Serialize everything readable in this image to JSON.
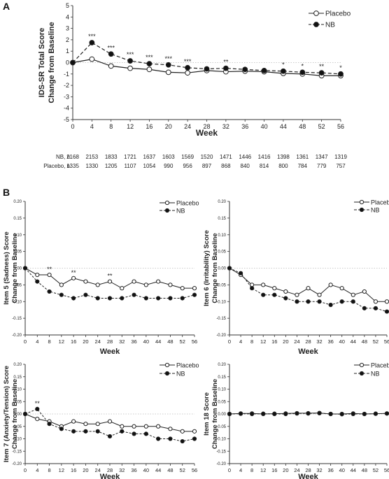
{
  "chart_data": [
    {
      "panel": "A",
      "type": "line",
      "ylabel": [
        "IDS-SR Total Score",
        "Change from Baseline"
      ],
      "xlabel": "Week",
      "x": [
        0,
        4,
        8,
        12,
        16,
        20,
        24,
        28,
        32,
        36,
        40,
        44,
        48,
        52,
        56
      ],
      "xticks": [
        "0",
        "4",
        "8",
        "12",
        "16",
        "20",
        "24",
        "28",
        "32",
        "36",
        "40",
        "44",
        "48",
        "52",
        "56"
      ],
      "ylim": [
        -5,
        5
      ],
      "yticks": [
        "-5",
        "-4",
        "-3",
        "-2",
        "-1",
        "0",
        "1",
        "2",
        "3",
        "4",
        "5"
      ],
      "series": [
        {
          "name": "Placebo",
          "marker": "open",
          "dash": "solid",
          "values": [
            0,
            0.3,
            -0.3,
            -0.5,
            -0.6,
            -0.85,
            -0.9,
            -0.7,
            -0.8,
            -0.75,
            -0.8,
            -0.95,
            -1.0,
            -1.15,
            -1.15
          ]
        },
        {
          "name": "NB",
          "marker": "filled",
          "dash": "dashed",
          "values": [
            0,
            1.75,
            0.75,
            0.15,
            -0.1,
            -0.2,
            -0.45,
            -0.55,
            -0.5,
            -0.6,
            -0.7,
            -0.75,
            -0.85,
            -0.9,
            -1.0
          ]
        }
      ],
      "annotations": [
        {
          "x": 4,
          "text": "***"
        },
        {
          "x": 8,
          "text": "***"
        },
        {
          "x": 12,
          "text": "***"
        },
        {
          "x": 16,
          "text": "***"
        },
        {
          "x": 20,
          "text": "***"
        },
        {
          "x": 24,
          "text": "***"
        },
        {
          "x": 32,
          "text": "**"
        },
        {
          "x": 44,
          "text": "*"
        },
        {
          "x": 48,
          "text": "*"
        },
        {
          "x": 52,
          "text": "**"
        },
        {
          "x": 56,
          "text": "*"
        }
      ],
      "n_table": [
        {
          "label": "NB, n",
          "values": [
            "2168",
            "2153",
            "1833",
            "1721",
            "1637",
            "1603",
            "1569",
            "1520",
            "1471",
            "1446",
            "1416",
            "1398",
            "1361",
            "1347",
            "1319"
          ]
        },
        {
          "label": "Placebo, n",
          "values": [
            "1335",
            "1330",
            "1205",
            "1107",
            "1054",
            "990",
            "956",
            "897",
            "868",
            "840",
            "814",
            "800",
            "784",
            "779",
            "757"
          ]
        }
      ]
    },
    {
      "panel": "B",
      "type": "line",
      "ylabel": [
        "Item 5 (Sadness) Score",
        "Change from Baseline"
      ],
      "xlabel": "Week",
      "x": [
        0,
        4,
        8,
        12,
        16,
        20,
        24,
        28,
        32,
        36,
        40,
        44,
        48,
        52,
        56
      ],
      "xticks": [
        "0",
        "4",
        "8",
        "12",
        "16",
        "20",
        "24",
        "28",
        "32",
        "36",
        "40",
        "44",
        "48",
        "52",
        "56"
      ],
      "ylim": [
        -0.2,
        0.2
      ],
      "yticks": [
        "-0.20",
        "-0.15",
        "-0.10",
        "-0.05",
        "0.00",
        "0.05",
        "0.10",
        "0.15",
        "0.20"
      ],
      "series": [
        {
          "name": "Placebo",
          "marker": "open",
          "dash": "solid",
          "values": [
            0,
            -0.02,
            -0.02,
            -0.05,
            -0.03,
            -0.04,
            -0.05,
            -0.04,
            -0.06,
            -0.04,
            -0.05,
            -0.04,
            -0.05,
            -0.06,
            -0.06
          ]
        },
        {
          "name": "NB",
          "marker": "filled",
          "dash": "dashed",
          "values": [
            0,
            -0.04,
            -0.07,
            -0.08,
            -0.09,
            -0.08,
            -0.09,
            -0.09,
            -0.09,
            -0.08,
            -0.09,
            -0.09,
            -0.09,
            -0.09,
            -0.08
          ]
        }
      ],
      "annotations": [
        {
          "x": 8,
          "text": "**"
        },
        {
          "x": 16,
          "text": "**"
        },
        {
          "x": 28,
          "text": "**"
        }
      ]
    },
    {
      "type": "line",
      "ylabel": [
        "Item 6 (Irritability) Score",
        "Change from Baseline"
      ],
      "xlabel": "Week",
      "x": [
        0,
        4,
        8,
        12,
        16,
        20,
        24,
        28,
        32,
        36,
        40,
        44,
        48,
        52,
        56
      ],
      "xticks": [
        "0",
        "4",
        "8",
        "12",
        "16",
        "20",
        "24",
        "28",
        "32",
        "36",
        "40",
        "44",
        "48",
        "52",
        "56"
      ],
      "ylim": [
        -0.2,
        0.2
      ],
      "yticks": [
        "-0.20",
        "-0.15",
        "-0.10",
        "-0.05",
        "0.00",
        "0.05",
        "0.10",
        "0.15",
        "0.20"
      ],
      "series": [
        {
          "name": "Placebo",
          "marker": "open",
          "dash": "solid",
          "values": [
            0,
            -0.02,
            -0.05,
            -0.05,
            -0.06,
            -0.07,
            -0.08,
            -0.06,
            -0.08,
            -0.05,
            -0.06,
            -0.08,
            -0.07,
            -0.1,
            -0.1
          ]
        },
        {
          "name": "NB",
          "marker": "filled",
          "dash": "dashed",
          "values": [
            0,
            -0.015,
            -0.06,
            -0.08,
            -0.08,
            -0.09,
            -0.1,
            -0.1,
            -0.1,
            -0.11,
            -0.1,
            -0.1,
            -0.12,
            -0.12,
            -0.13
          ]
        }
      ],
      "annotations": []
    },
    {
      "type": "line",
      "ylabel": [
        "Item 7 (Anxiety/Tension) Score",
        "Change from Baseline"
      ],
      "xlabel": "Week",
      "x": [
        0,
        4,
        8,
        12,
        16,
        20,
        24,
        28,
        32,
        36,
        40,
        44,
        48,
        52,
        56
      ],
      "xticks": [
        "0",
        "4",
        "8",
        "12",
        "16",
        "20",
        "24",
        "28",
        "32",
        "36",
        "40",
        "44",
        "48",
        "52",
        "56"
      ],
      "ylim": [
        -0.2,
        0.2
      ],
      "yticks": [
        "-0.20",
        "-0.15",
        "-0.10",
        "-0.05",
        "0.00",
        "0.05",
        "0.10",
        "0.15",
        "0.20"
      ],
      "series": [
        {
          "name": "Placebo",
          "marker": "open",
          "dash": "solid",
          "values": [
            0,
            -0.02,
            -0.03,
            -0.05,
            -0.03,
            -0.04,
            -0.04,
            -0.03,
            -0.05,
            -0.05,
            -0.05,
            -0.05,
            -0.06,
            -0.07,
            -0.07
          ]
        },
        {
          "name": "NB",
          "marker": "filled",
          "dash": "dashed",
          "values": [
            0,
            0.02,
            -0.04,
            -0.06,
            -0.07,
            -0.07,
            -0.07,
            -0.09,
            -0.07,
            -0.08,
            -0.08,
            -0.1,
            -0.1,
            -0.11,
            -0.1
          ]
        }
      ],
      "annotations": [
        {
          "x": 4,
          "text": "**"
        }
      ]
    },
    {
      "type": "line",
      "ylabel": [
        "Item 18 Score",
        "Change from Baseline"
      ],
      "xlabel": "Week",
      "x": [
        0,
        4,
        8,
        12,
        16,
        20,
        24,
        28,
        32,
        36,
        40,
        44,
        48,
        52,
        56
      ],
      "xticks": [
        "0",
        "4",
        "8",
        "12",
        "16",
        "20",
        "24",
        "28",
        "32",
        "36",
        "40",
        "44",
        "48",
        "52",
        "56"
      ],
      "ylim": [
        -0.2,
        0.2
      ],
      "yticks": [
        "-0.20",
        "-0.15",
        "-0.10",
        "-0.05",
        "0.00",
        "0.05",
        "0.10",
        "0.15",
        "0.20"
      ],
      "series": [
        {
          "name": "Placebo",
          "marker": "open",
          "dash": "solid",
          "values": [
            0,
            0.002,
            0.002,
            0.0,
            0.001,
            0.002,
            0.003,
            0.003,
            0.004,
            0.0,
            0.0,
            0.002,
            0.0,
            0.001,
            0.002
          ]
        },
        {
          "name": "NB",
          "marker": "filled",
          "dash": "dashed",
          "values": [
            0,
            0.001,
            0.0,
            0.001,
            0.0,
            0.0,
            0.002,
            0.002,
            0.003,
            0.0,
            -0.001,
            0.0,
            0.0,
            0.001,
            0.002
          ]
        }
      ],
      "annotations": []
    }
  ]
}
